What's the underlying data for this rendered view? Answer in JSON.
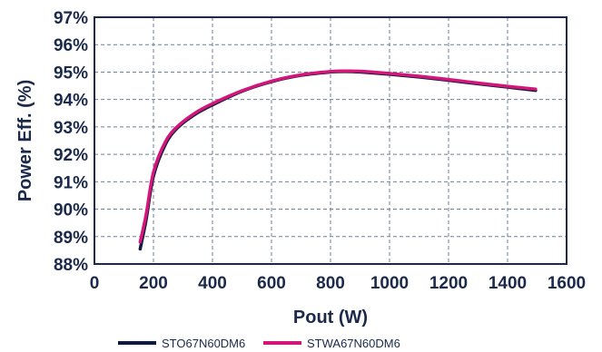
{
  "chart_data": {
    "type": "line",
    "xlabel": "Pout (W)",
    "ylabel": "Power Eff. (%)",
    "xlim": [
      0,
      1600
    ],
    "ylim": [
      88,
      97
    ],
    "x_ticks": [
      0,
      200,
      400,
      600,
      800,
      1000,
      1200,
      1400,
      1600
    ],
    "x_tick_labels": [
      "0",
      "200",
      "400",
      "600",
      "800",
      "1000",
      "1200",
      "1400",
      "1600"
    ],
    "y_ticks": [
      88,
      89,
      90,
      91,
      92,
      93,
      94,
      95,
      96,
      97
    ],
    "y_tick_labels": [
      "88%",
      "89%",
      "90%",
      "91%",
      "92%",
      "93%",
      "94%",
      "95%",
      "96%",
      "97%"
    ],
    "grid": true,
    "legend_position": "bottom",
    "series": [
      {
        "name": "STO67N60DM6",
        "color": "#0f1b3d",
        "x": [
          155,
          175,
          200,
          240,
          280,
          340,
          400,
          500,
          600,
          700,
          800,
          850,
          900,
          1000,
          1100,
          1200,
          1300,
          1400,
          1495
        ],
        "y": [
          88.55,
          89.6,
          91.2,
          92.35,
          92.95,
          93.45,
          93.8,
          94.3,
          94.65,
          94.88,
          95.0,
          95.02,
          95.0,
          94.92,
          94.82,
          94.7,
          94.57,
          94.45,
          94.33
        ]
      },
      {
        "name": "STWA67N60DM6",
        "color": "#d4157a",
        "x": [
          155,
          175,
          200,
          240,
          280,
          340,
          400,
          500,
          600,
          700,
          800,
          850,
          900,
          1000,
          1100,
          1200,
          1300,
          1400,
          1495
        ],
        "y": [
          88.8,
          89.8,
          91.35,
          92.45,
          93.0,
          93.5,
          93.85,
          94.32,
          94.67,
          94.9,
          95.02,
          95.04,
          95.03,
          94.95,
          94.85,
          94.73,
          94.6,
          94.48,
          94.38
        ]
      }
    ]
  }
}
